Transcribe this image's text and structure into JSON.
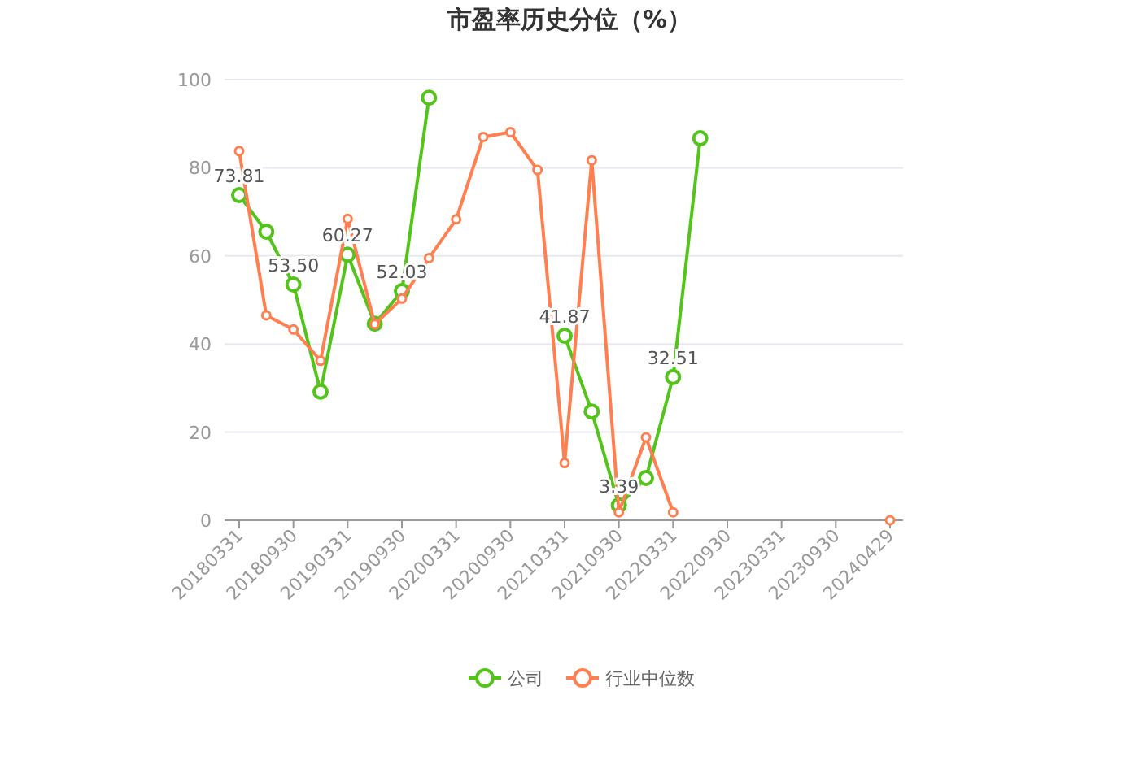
{
  "chart_data": {
    "type": "line",
    "title": "市盈率历史分位（%）",
    "categories": [
      "20180331",
      null,
      "20180930",
      null,
      "20190331",
      null,
      "20190930",
      null,
      "20200331",
      null,
      "20200930",
      null,
      "20210331",
      null,
      "20210930",
      null,
      "20220331",
      null,
      "20220930",
      null,
      "20230331",
      null,
      "20230930",
      null,
      "20240429"
    ],
    "series": [
      {
        "name": "公司",
        "color": "#52c41a",
        "values": [
          73.81,
          65.5,
          53.5,
          29.2,
          60.27,
          44.6,
          52.03,
          95.9,
          null,
          null,
          null,
          null,
          41.87,
          24.7,
          3.39,
          9.6,
          32.51,
          86.7,
          null,
          null,
          null,
          null,
          null,
          null,
          null
        ],
        "value_labels": [
          "73.81",
          null,
          "53.50",
          null,
          "60.27",
          null,
          "52.03",
          null,
          null,
          null,
          null,
          null,
          "41.87",
          null,
          "3.39",
          null,
          "32.51",
          null,
          null,
          null,
          null,
          null,
          null,
          null,
          null
        ]
      },
      {
        "name": "行业中位数",
        "color": "#ff7f50",
        "values": [
          83.8,
          46.5,
          43.3,
          36.2,
          68.4,
          44.5,
          50.3,
          59.5,
          68.3,
          87.0,
          88.1,
          79.5,
          13.0,
          81.7,
          1.8,
          18.8,
          1.8,
          null,
          null,
          null,
          null,
          null,
          null,
          null,
          0
        ]
      }
    ],
    "ylim": [
      0,
      100
    ],
    "yticks": [
      0,
      20,
      40,
      60,
      80,
      100
    ],
    "grid": "y",
    "legend": "bottom",
    "marker": "circle",
    "line_style": "solid"
  }
}
